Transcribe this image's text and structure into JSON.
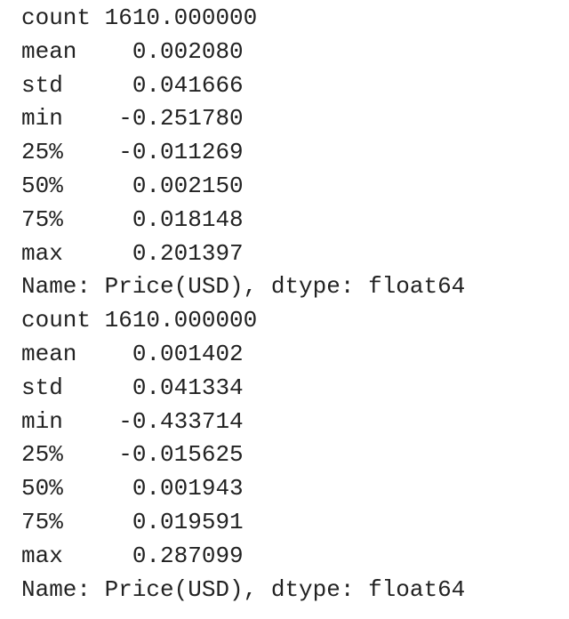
{
  "blocks": [
    {
      "rows": [
        {
          "stat": "count",
          "value": "1610.000000"
        },
        {
          "stat": "mean",
          "value": "0.002080"
        },
        {
          "stat": "std",
          "value": "0.041666"
        },
        {
          "stat": "min",
          "value": "-0.251780"
        },
        {
          "stat": "25%",
          "value": "-0.011269"
        },
        {
          "stat": "50%",
          "value": "0.002150"
        },
        {
          "stat": "75%",
          "value": "0.018148"
        },
        {
          "stat": "max",
          "value": "0.201397"
        }
      ],
      "footer": "Name: Price(USD), dtype: float64"
    },
    {
      "rows": [
        {
          "stat": "count",
          "value": "1610.000000"
        },
        {
          "stat": "mean",
          "value": "0.001402"
        },
        {
          "stat": "std",
          "value": "0.041334"
        },
        {
          "stat": "min",
          "value": "-0.433714"
        },
        {
          "stat": "25%",
          "value": "-0.015625"
        },
        {
          "stat": "50%",
          "value": "0.001943"
        },
        {
          "stat": "75%",
          "value": "0.019591"
        },
        {
          "stat": "max",
          "value": "0.287099"
        }
      ],
      "footer": "Name: Price(USD), dtype: float64"
    }
  ]
}
